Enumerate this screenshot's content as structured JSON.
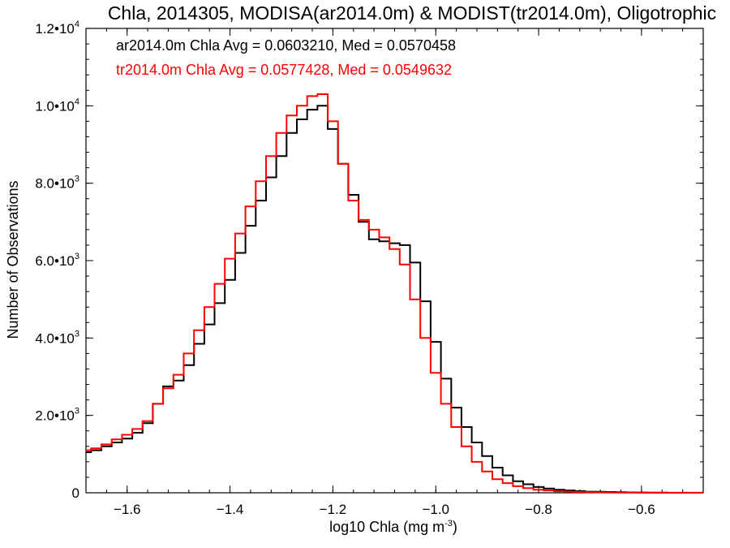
{
  "chart_data": {
    "type": "line",
    "title": "Chla, 2014305, MODISA(ar2014.0m) & MODIST(tr2014.0m), Oligotrophic",
    "xlabel": "log10 Chla (mg m",
    "xlabel_sup": "-3",
    "xlabel_end": ")",
    "ylabel": "Number of Observations",
    "xlim": [
      -1.68,
      -0.48
    ],
    "ylim": [
      0,
      12000
    ],
    "x_ticks": [
      {
        "value": -1.6,
        "label": "−1.6"
      },
      {
        "value": -1.4,
        "label": "−1.4"
      },
      {
        "value": -1.2,
        "label": "−1.2"
      },
      {
        "value": -1.0,
        "label": "−1.0"
      },
      {
        "value": -0.8,
        "label": "−0.8"
      },
      {
        "value": -0.6,
        "label": "−0.6"
      }
    ],
    "y_ticks": [
      {
        "value": 0,
        "label": "0",
        "exp": ""
      },
      {
        "value": 2000,
        "label": "2.0•10",
        "exp": "3"
      },
      {
        "value": 4000,
        "label": "4.0•10",
        "exp": "3"
      },
      {
        "value": 6000,
        "label": "6.0•10",
        "exp": "3"
      },
      {
        "value": 8000,
        "label": "8.0•10",
        "exp": "3"
      },
      {
        "value": 10000,
        "label": "1.0•10",
        "exp": "4"
      },
      {
        "value": 12000,
        "label": "1.2•10",
        "exp": "4"
      }
    ],
    "legend_entries": [
      {
        "text": "ar2014.0m Chla Avg = 0.0603210, Med = 0.0570458",
        "color": "#000000"
      },
      {
        "text": "tr2014.0m Chla Avg = 0.0577428, Med = 0.0549632",
        "color": "#ff0000"
      }
    ],
    "legend_position": "top-left",
    "series": [
      {
        "color": "#000000",
        "x": [
          -1.68,
          -1.66,
          -1.64,
          -1.62,
          -1.6,
          -1.58,
          -1.56,
          -1.54,
          -1.52,
          -1.5,
          -1.48,
          -1.46,
          -1.44,
          -1.42,
          -1.4,
          -1.38,
          -1.36,
          -1.34,
          -1.32,
          -1.3,
          -1.28,
          -1.26,
          -1.24,
          -1.22,
          -1.2,
          -1.18,
          -1.16,
          -1.14,
          -1.12,
          -1.1,
          -1.08,
          -1.06,
          -1.04,
          -1.02,
          -1.0,
          -0.98,
          -0.96,
          -0.94,
          -0.92,
          -0.9,
          -0.88,
          -0.86,
          -0.84,
          -0.82,
          -0.8,
          -0.78,
          -0.76,
          -0.74,
          -0.72,
          -0.7,
          -0.68,
          -0.66,
          -0.64,
          -0.62,
          -0.6,
          -0.58,
          -0.56,
          -0.54,
          -0.52,
          -0.5,
          -0.48
        ],
        "y": [
          1050,
          1100,
          1200,
          1300,
          1400,
          1550,
          1800,
          2300,
          2750,
          2900,
          3300,
          3850,
          4350,
          4900,
          5500,
          6200,
          6900,
          7550,
          8150,
          8700,
          9300,
          9650,
          9900,
          10000,
          9400,
          8500,
          7700,
          7000,
          6550,
          6500,
          6450,
          6400,
          5950,
          4950,
          3900,
          2950,
          2200,
          1700,
          1300,
          950,
          650,
          450,
          300,
          220,
          150,
          110,
          80,
          60,
          45,
          30,
          25,
          20,
          15,
          10,
          8,
          5,
          4,
          3,
          2,
          2,
          2
        ]
      },
      {
        "color": "#ff0000",
        "x": [
          -1.68,
          -1.66,
          -1.64,
          -1.62,
          -1.6,
          -1.58,
          -1.56,
          -1.54,
          -1.52,
          -1.5,
          -1.48,
          -1.46,
          -1.44,
          -1.42,
          -1.4,
          -1.38,
          -1.36,
          -1.34,
          -1.32,
          -1.3,
          -1.28,
          -1.26,
          -1.24,
          -1.22,
          -1.2,
          -1.18,
          -1.16,
          -1.14,
          -1.12,
          -1.1,
          -1.08,
          -1.06,
          -1.04,
          -1.02,
          -1.0,
          -0.98,
          -0.96,
          -0.94,
          -0.92,
          -0.9,
          -0.88,
          -0.86,
          -0.84,
          -0.82,
          -0.8,
          -0.78,
          -0.76,
          -0.74,
          -0.72,
          -0.7,
          -0.68,
          -0.66,
          -0.64,
          -0.62,
          -0.6,
          -0.58,
          -0.56,
          -0.54,
          -0.52,
          -0.5,
          -0.48
        ],
        "y": [
          1100,
          1150,
          1250,
          1380,
          1500,
          1650,
          1850,
          2300,
          2700,
          3050,
          3600,
          4200,
          4800,
          5400,
          6050,
          6700,
          7400,
          8050,
          8700,
          9300,
          9750,
          10000,
          10250,
          10300,
          9600,
          8500,
          7550,
          7050,
          6800,
          6600,
          6300,
          5900,
          5000,
          4000,
          3100,
          2300,
          1700,
          1200,
          800,
          550,
          350,
          250,
          170,
          120,
          80,
          60,
          40,
          30,
          20,
          15,
          10,
          8,
          5,
          4,
          3,
          2,
          2,
          1,
          1,
          1,
          1
        ]
      }
    ]
  }
}
